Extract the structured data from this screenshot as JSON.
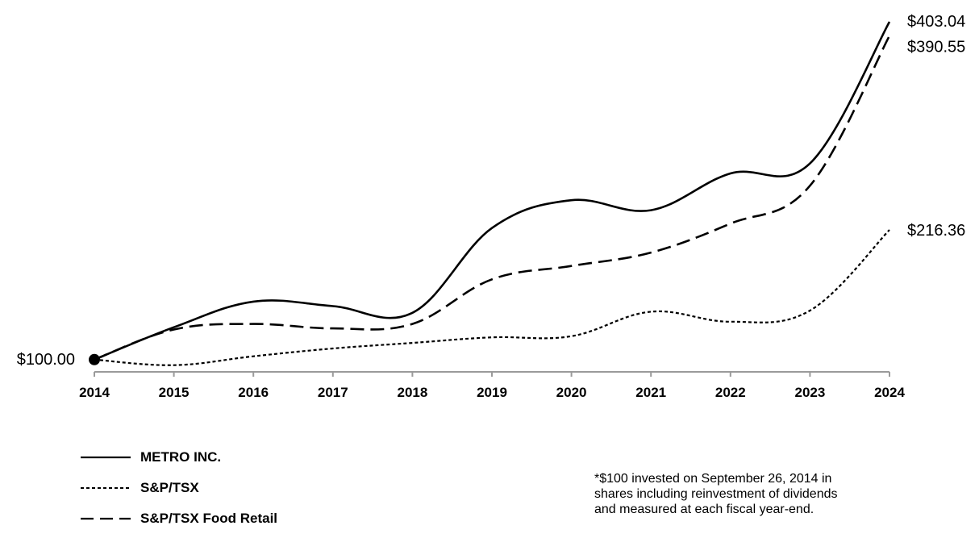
{
  "chart_data": {
    "type": "line",
    "x": [
      "2014",
      "2015",
      "2016",
      "2017",
      "2018",
      "2019",
      "2020",
      "2021",
      "2022",
      "2023",
      "2024"
    ],
    "ylim": [
      0,
      420
    ],
    "series": [
      {
        "name": "METRO INC.",
        "style": "solid",
        "values": [
          100.0,
          129.0,
          152.0,
          148.0,
          142.0,
          218.0,
          243.0,
          234.0,
          267.0,
          276.0,
          403.04
        ]
      },
      {
        "name": "S&P/TSX",
        "style": "dotted",
        "values": [
          100.0,
          95.0,
          103.0,
          110.0,
          115.0,
          120.0,
          121.0,
          143.0,
          134.0,
          144.0,
          216.36
        ]
      },
      {
        "name": "S&P/TSX Food Retail",
        "style": "dashed",
        "values": [
          100.0,
          127.0,
          132.0,
          128.0,
          132.0,
          172.0,
          184.0,
          196.0,
          222.0,
          256.0,
          390.55
        ]
      }
    ],
    "start_label": "$100.00",
    "end_labels": [
      "$403.04",
      "$390.55",
      "$216.36"
    ],
    "grid": false,
    "legend_position": "bottom-left",
    "footnote": "*$100 invested on September 26, 2014 in shares including reinvestment of dividends and measured at each fiscal year-end."
  }
}
